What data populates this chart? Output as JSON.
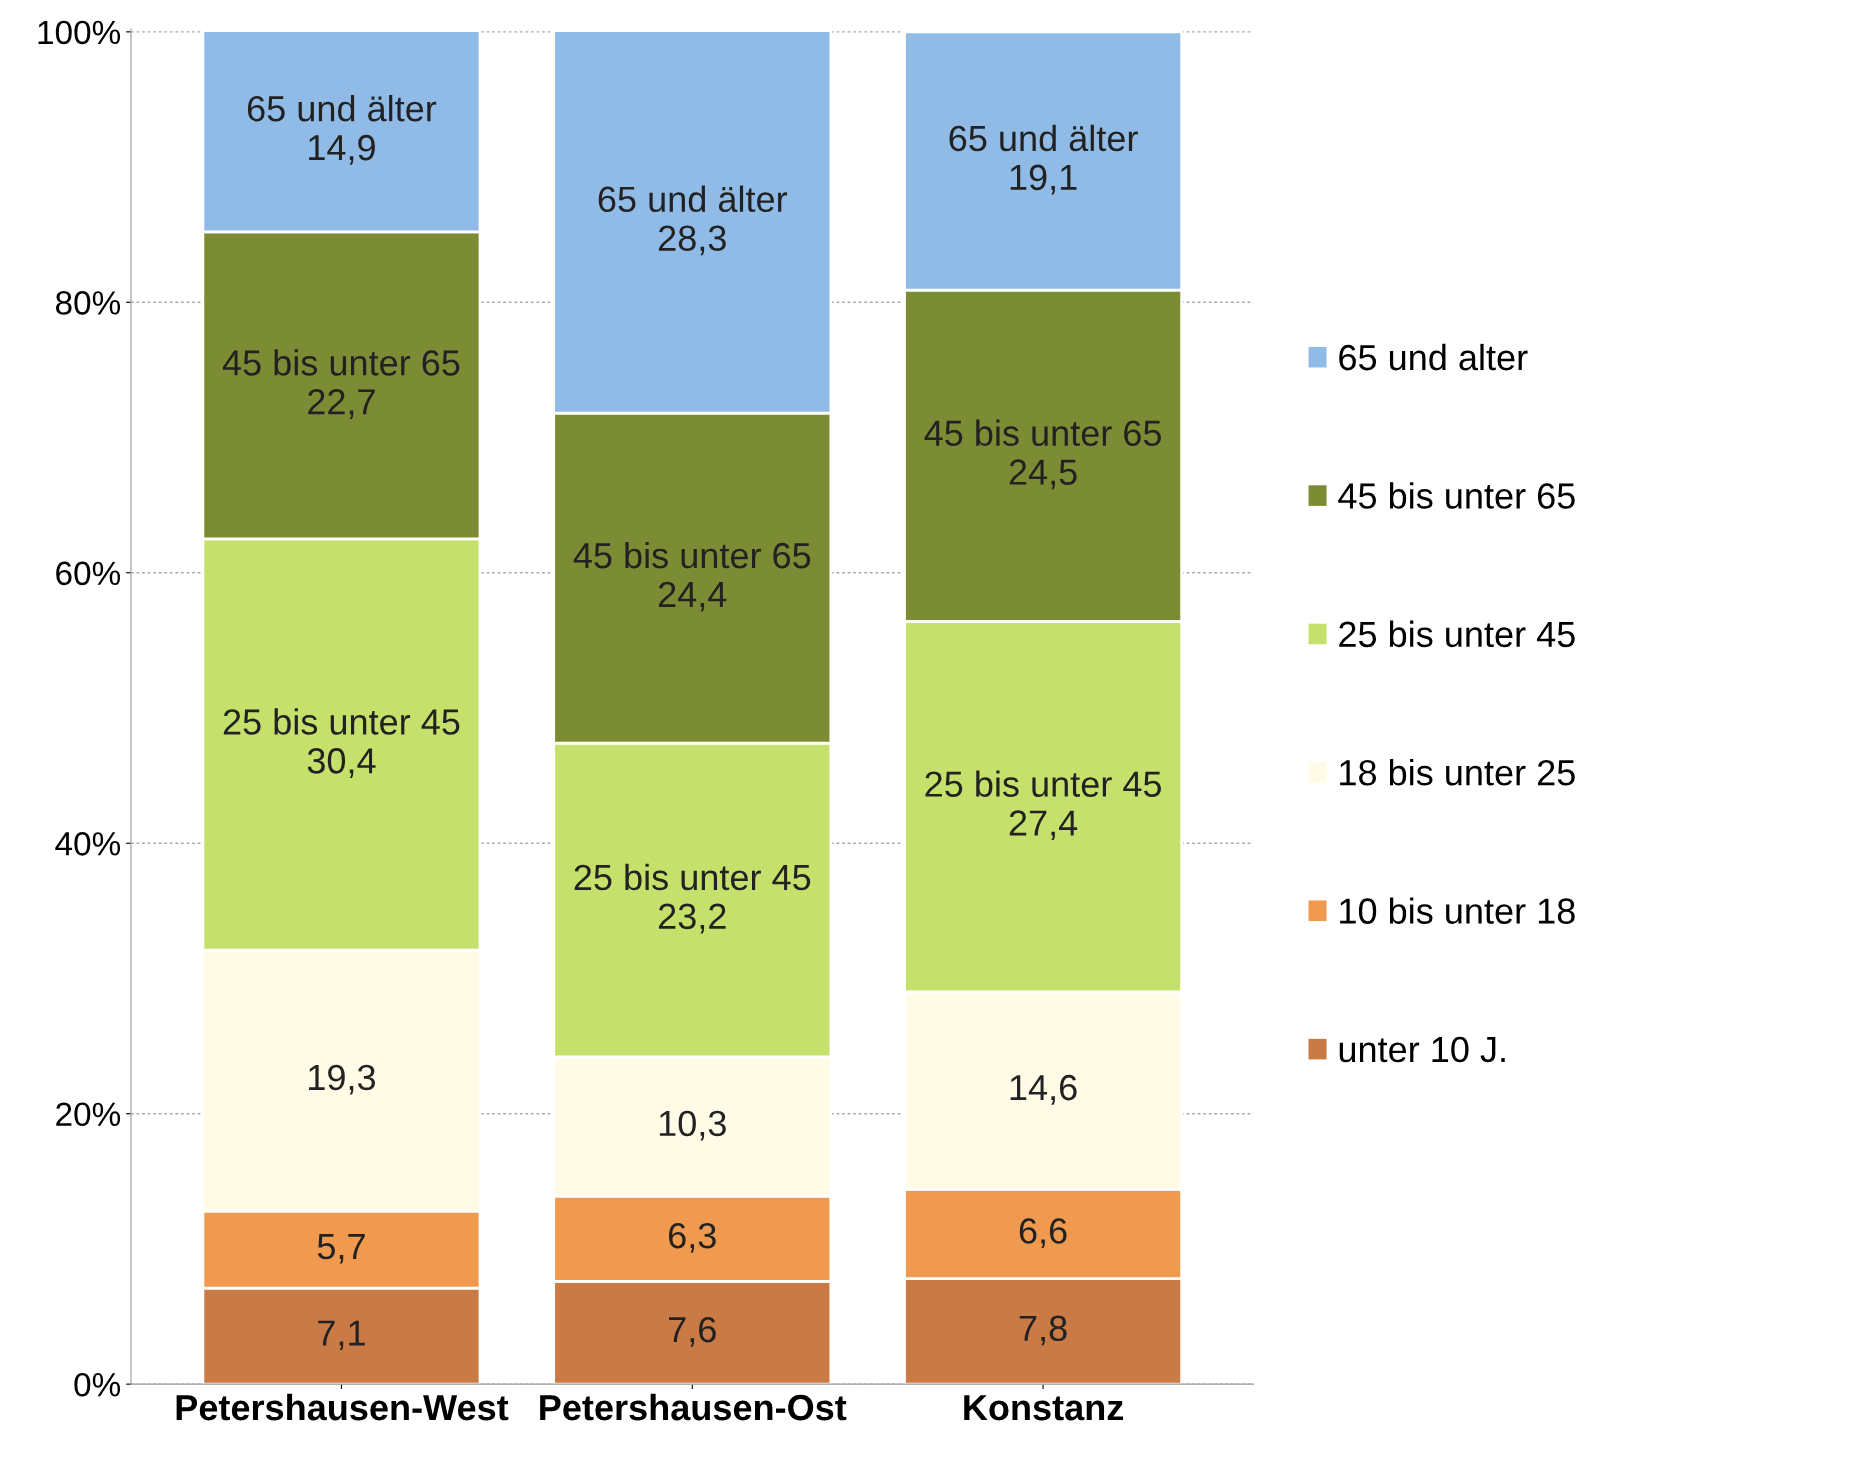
{
  "chart_data": {
    "type": "bar",
    "stacked": true,
    "categories": [
      "Petershausen-West",
      "Petershausen-Ost",
      "Konstanz"
    ],
    "series": [
      {
        "name": "unter 10 J.",
        "color": "#c97a45",
        "values": [
          7.1,
          7.6,
          7.8
        ],
        "value_labels": [
          "7,1",
          "7,6",
          "7,8"
        ]
      },
      {
        "name": "10 bis unter 18",
        "color": "#f09a50",
        "values": [
          5.7,
          6.3,
          6.6
        ],
        "value_labels": [
          "5,7",
          "6,3",
          "6,6"
        ]
      },
      {
        "name": "18 bis unter 25",
        "color": "#fffbe6",
        "values": [
          19.3,
          10.3,
          14.6
        ],
        "value_labels": [
          "19,3",
          "10,3",
          "14,6"
        ]
      },
      {
        "name": "25 bis unter 45",
        "color": "#c6e06c",
        "values": [
          30.4,
          23.2,
          27.4
        ],
        "value_labels": [
          "25 bis unter 45\n30,4",
          "25 bis unter 45\n23,2",
          "25 bis unter 45\n27,4"
        ]
      },
      {
        "name": "45 bis unter 65",
        "color": "#7b8c35",
        "values": [
          22.7,
          24.4,
          24.5
        ],
        "value_labels": [
          "45 bis unter 65\n22,7",
          "45 bis unter 65\n24,4",
          "45 bis unter 65\n24,5"
        ]
      },
      {
        "name": "65 und alter",
        "color": "#8fbbe6",
        "values": [
          14.9,
          28.3,
          19.1
        ],
        "value_labels": [
          "65 und älter\n14,9",
          "65 und älter\n28,3",
          "65 und älter\n19,1"
        ]
      }
    ],
    "ylim": [
      0,
      100.2
    ],
    "yticks": [
      {
        "value": 0,
        "label": "0%"
      },
      {
        "value": 20,
        "label": "20%"
      },
      {
        "value": 40,
        "label": "40%"
      },
      {
        "value": 60,
        "label": "60%"
      },
      {
        "value": 80,
        "label": "80%"
      },
      {
        "value": 100,
        "label": "100%"
      }
    ],
    "grid": "y",
    "legend": "right"
  }
}
